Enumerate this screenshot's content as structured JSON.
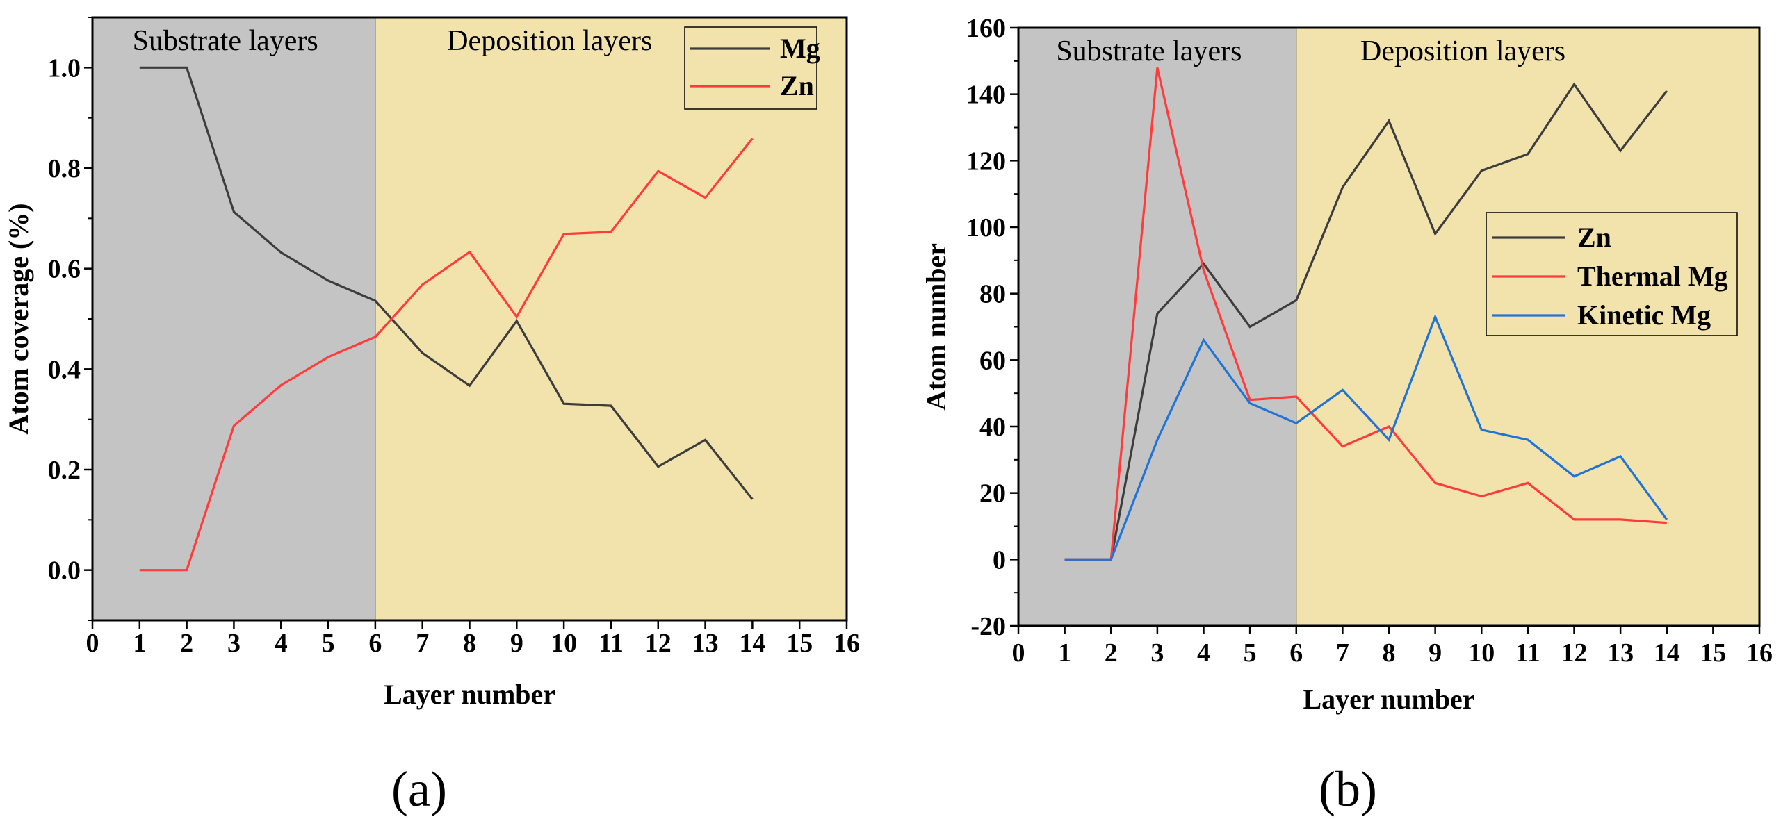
{
  "chart_data": [
    {
      "type": "line",
      "panel_label": "(a)",
      "xlabel": "Layer number",
      "ylabel": "Atom coverage (%)",
      "xlim": [
        0,
        16
      ],
      "ylim": [
        -0.1,
        1.1
      ],
      "xticks": [
        0,
        1,
        2,
        3,
        4,
        5,
        6,
        7,
        8,
        9,
        10,
        11,
        12,
        13,
        14,
        15,
        16
      ],
      "yticks": [
        0.0,
        0.2,
        0.4,
        0.6,
        0.8,
        1.0
      ],
      "ytick_labels": [
        "0.0",
        "0.2",
        "0.4",
        "0.6",
        "0.8",
        "1.0"
      ],
      "regions": [
        {
          "label": "Substrate layers",
          "x0": 0,
          "x1": 6,
          "color": "#c4c4c4"
        },
        {
          "label": "Deposition layers",
          "x0": 6,
          "x1": 16,
          "color": "#f2e3ac"
        }
      ],
      "legend_position": "top-right",
      "series": [
        {
          "name": "Mg",
          "color": "#3d3d3d",
          "x": [
            1,
            2,
            3,
            4,
            5,
            6,
            7,
            8,
            9,
            10,
            11,
            12,
            13,
            14
          ],
          "y": [
            1.0,
            1.0,
            0.713,
            0.632,
            0.576,
            0.536,
            0.432,
            0.367,
            0.496,
            0.331,
            0.327,
            0.206,
            0.259,
            0.141
          ]
        },
        {
          "name": "Zn",
          "color": "#ff3b3b",
          "x": [
            1,
            2,
            3,
            4,
            5,
            6,
            7,
            8,
            9,
            10,
            11,
            12,
            13,
            14
          ],
          "y": [
            0.0,
            0.0,
            0.287,
            0.368,
            0.424,
            0.464,
            0.568,
            0.633,
            0.504,
            0.669,
            0.673,
            0.794,
            0.741,
            0.859
          ]
        }
      ]
    },
    {
      "type": "line",
      "panel_label": "(b)",
      "xlabel": "Layer number",
      "ylabel": "Atom number",
      "xlim": [
        0,
        16
      ],
      "ylim": [
        -20,
        160
      ],
      "xticks": [
        0,
        1,
        2,
        3,
        4,
        5,
        6,
        7,
        8,
        9,
        10,
        11,
        12,
        13,
        14,
        15,
        16
      ],
      "yticks": [
        -20,
        0,
        20,
        40,
        60,
        80,
        100,
        120,
        140,
        160
      ],
      "ytick_labels": [
        "-20",
        "0",
        "20",
        "40",
        "60",
        "80",
        "100",
        "120",
        "140",
        "160"
      ],
      "regions": [
        {
          "label": "Substrate layers",
          "x0": 0,
          "x1": 6,
          "color": "#c4c4c4"
        },
        {
          "label": "Deposition layers",
          "x0": 6,
          "x1": 16,
          "color": "#f2e3ac"
        }
      ],
      "legend_position": "center-right",
      "series": [
        {
          "name": "Zn",
          "color": "#3d3d3d",
          "x": [
            1,
            2,
            3,
            4,
            5,
            6,
            7,
            8,
            9,
            10,
            11,
            12,
            13,
            14
          ],
          "y": [
            0,
            0,
            74,
            89,
            70,
            78,
            112,
            132,
            98,
            117,
            122,
            143,
            123,
            141
          ]
        },
        {
          "name": "Thermal Mg",
          "color": "#ff3b3b",
          "x": [
            1,
            2,
            3,
            4,
            5,
            6,
            7,
            8,
            9,
            10,
            11,
            12,
            13,
            14
          ],
          "y": [
            0,
            0,
            148,
            87,
            48,
            49,
            34,
            40,
            23,
            19,
            23,
            12,
            12,
            11
          ]
        },
        {
          "name": "Kinetic Mg",
          "color": "#1f74d6",
          "x": [
            1,
            2,
            3,
            4,
            5,
            6,
            7,
            8,
            9,
            10,
            11,
            12,
            13,
            14
          ],
          "y": [
            0,
            0,
            36,
            66,
            47,
            41,
            51,
            36,
            73,
            39,
            36,
            25,
            31,
            12
          ]
        }
      ]
    }
  ]
}
